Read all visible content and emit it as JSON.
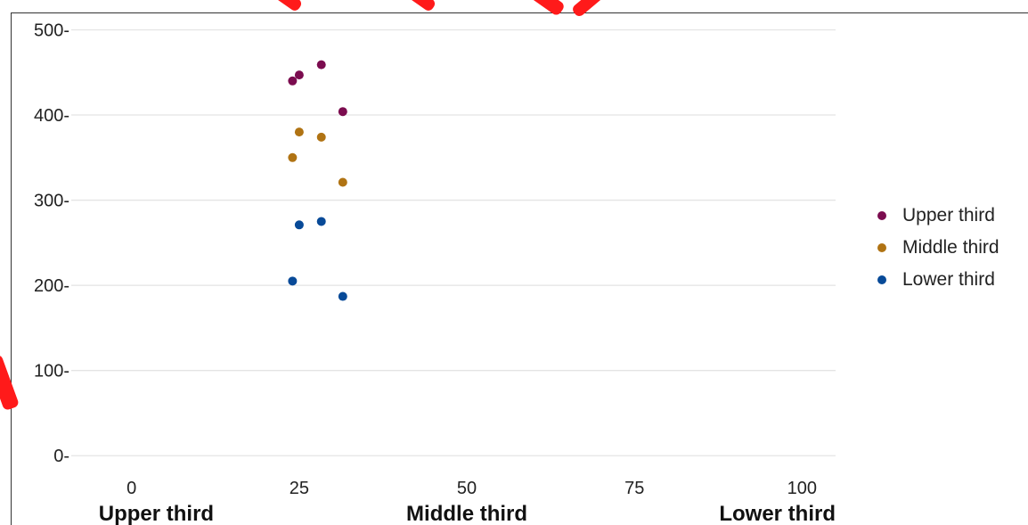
{
  "chart_data": {
    "type": "scatter",
    "title": "",
    "xlabel": "",
    "ylabel": "",
    "xlim": [
      -9,
      105
    ],
    "ylim": [
      -5,
      512
    ],
    "x_ticks": [
      0,
      25,
      50,
      75,
      100
    ],
    "x_tick_labels": [
      "0",
      "25",
      "50",
      "75",
      "100"
    ],
    "y_ticks": [
      0,
      100,
      200,
      300,
      400,
      500
    ],
    "y_tick_labels": [
      "0-",
      "100-",
      "200-",
      "300-",
      "400-",
      "500-"
    ],
    "x_category_labels": [
      "Upper third",
      "Middle third",
      "Lower third"
    ],
    "grid": "horizontal",
    "legend_position": "right",
    "series": [
      {
        "name": "Upper third",
        "color": "#7b0c4f",
        "points": [
          {
            "x": 24,
            "y": 440
          },
          {
            "x": 25,
            "y": 447
          },
          {
            "x": 28.3,
            "y": 459
          },
          {
            "x": 31.5,
            "y": 404
          }
        ]
      },
      {
        "name": "Middle third",
        "color": "#b07313",
        "points": [
          {
            "x": 24,
            "y": 350
          },
          {
            "x": 25,
            "y": 380
          },
          {
            "x": 28.3,
            "y": 374
          },
          {
            "x": 31.5,
            "y": 321
          }
        ]
      },
      {
        "name": "Lower third",
        "color": "#084a98",
        "points": [
          {
            "x": 24,
            "y": 205
          },
          {
            "x": 25,
            "y": 271
          },
          {
            "x": 28.3,
            "y": 275
          },
          {
            "x": 31.5,
            "y": 187
          }
        ]
      }
    ]
  },
  "colors": {
    "gridline": "#e4e4e4",
    "watermark_red": "#ff1a1a"
  }
}
